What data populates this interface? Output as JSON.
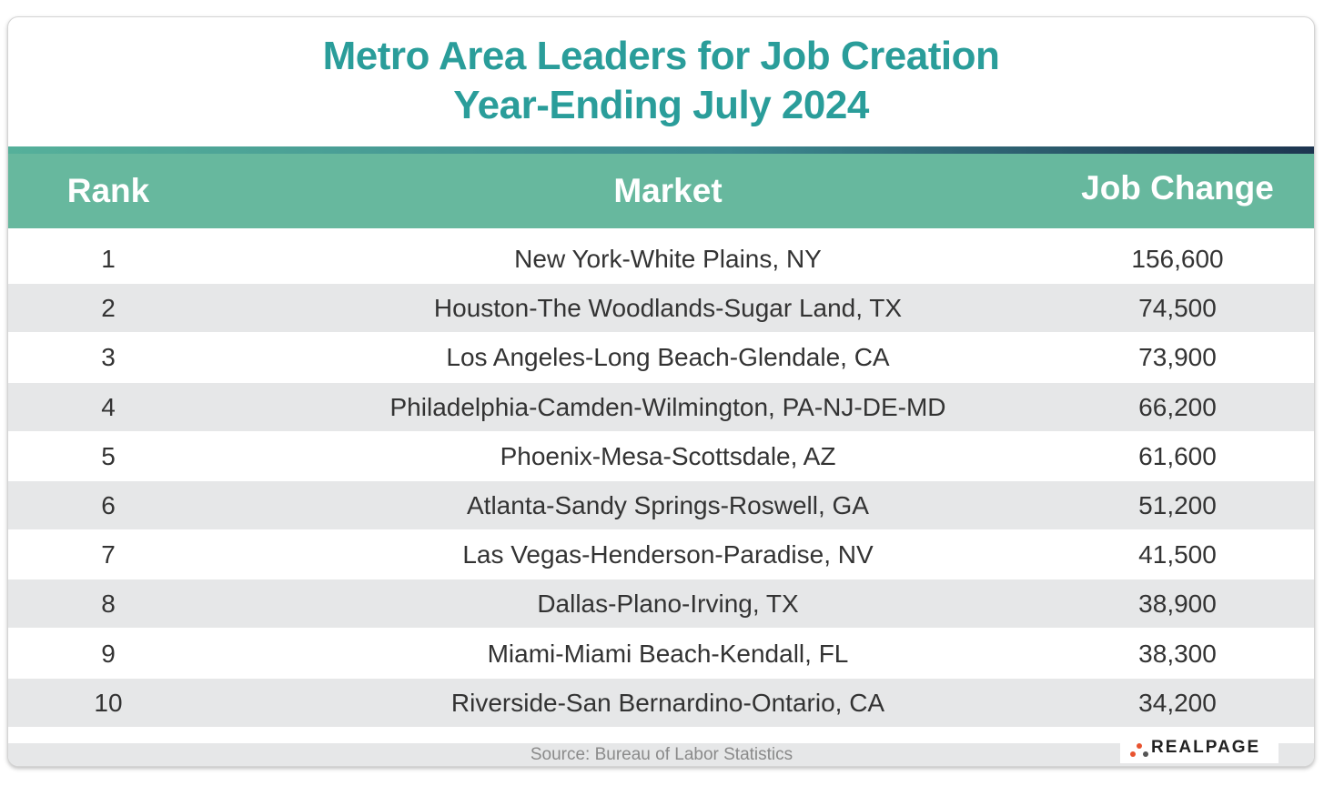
{
  "header": {
    "title": [
      "Metro Area Leaders for Job Creation",
      "Year-Ending July 2024"
    ]
  },
  "table": {
    "columns": [
      "Rank",
      "Market",
      "Job Change"
    ],
    "rows": [
      [
        "1",
        "New York-White Plains, NY",
        "156,600"
      ],
      [
        "2",
        "Houston-The Woodlands-Sugar Land, TX",
        "74,500"
      ],
      [
        "3",
        "Los Angeles-Long Beach-Glendale, CA",
        "73,900"
      ],
      [
        "4",
        "Philadelphia-Camden-Wilmington, PA-NJ-DE-MD",
        "66,200"
      ],
      [
        "5",
        "Phoenix-Mesa-Scottsdale, AZ",
        "61,600"
      ],
      [
        "6",
        "Atlanta-Sandy Springs-Roswell, GA",
        "51,200"
      ],
      [
        "7",
        "Las Vegas-Henderson-Paradise, NV",
        "41,500"
      ],
      [
        "8",
        "Dallas-Plano-Irving, TX",
        "38,900"
      ],
      [
        "9",
        "Miami-Miami Beach-Kendall, FL",
        "38,300"
      ],
      [
        "10",
        "Riverside-San Bernardino-Ontario, CA",
        "34,200"
      ]
    ]
  },
  "footer": {
    "source": "Source: Bureau of Labor Statistics",
    "logo": "REALPAGE"
  }
}
